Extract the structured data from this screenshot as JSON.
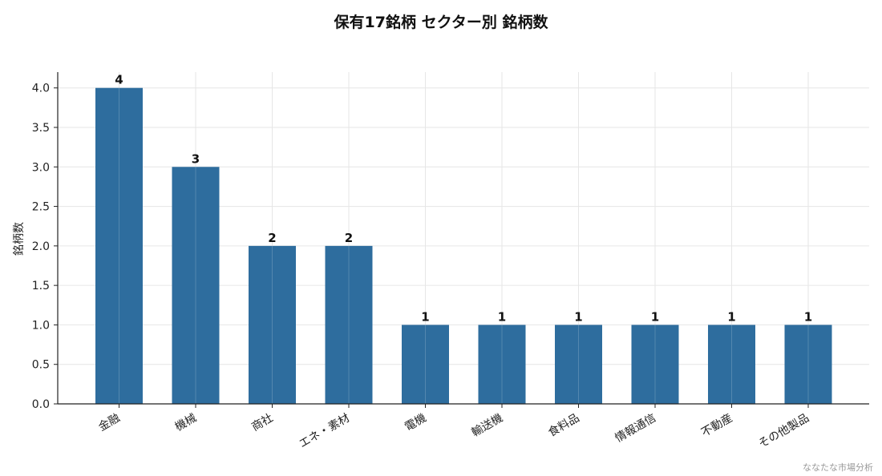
{
  "chart_data": {
    "type": "bar",
    "title": "保有17銘柄 セクター別 銘柄数",
    "xlabel": "",
    "ylabel": "銘柄数",
    "categories": [
      "金融",
      "機械",
      "商社",
      "エネ・素材",
      "電機",
      "輸送機",
      "食料品",
      "情報通信",
      "不動産",
      "その他製品"
    ],
    "values": [
      4,
      3,
      2,
      2,
      1,
      1,
      1,
      1,
      1,
      1
    ],
    "data_labels": [
      "4",
      "3",
      "2",
      "2",
      "1",
      "1",
      "1",
      "1",
      "1",
      "1"
    ],
    "ylim": [
      0,
      4.2
    ],
    "yticks": [
      "0.0",
      "0.5",
      "1.0",
      "1.5",
      "2.0",
      "2.5",
      "3.0",
      "3.5",
      "4.0"
    ],
    "grid": true,
    "bar_color": "#2e6d9e",
    "credit": "ななたな市場分析"
  }
}
